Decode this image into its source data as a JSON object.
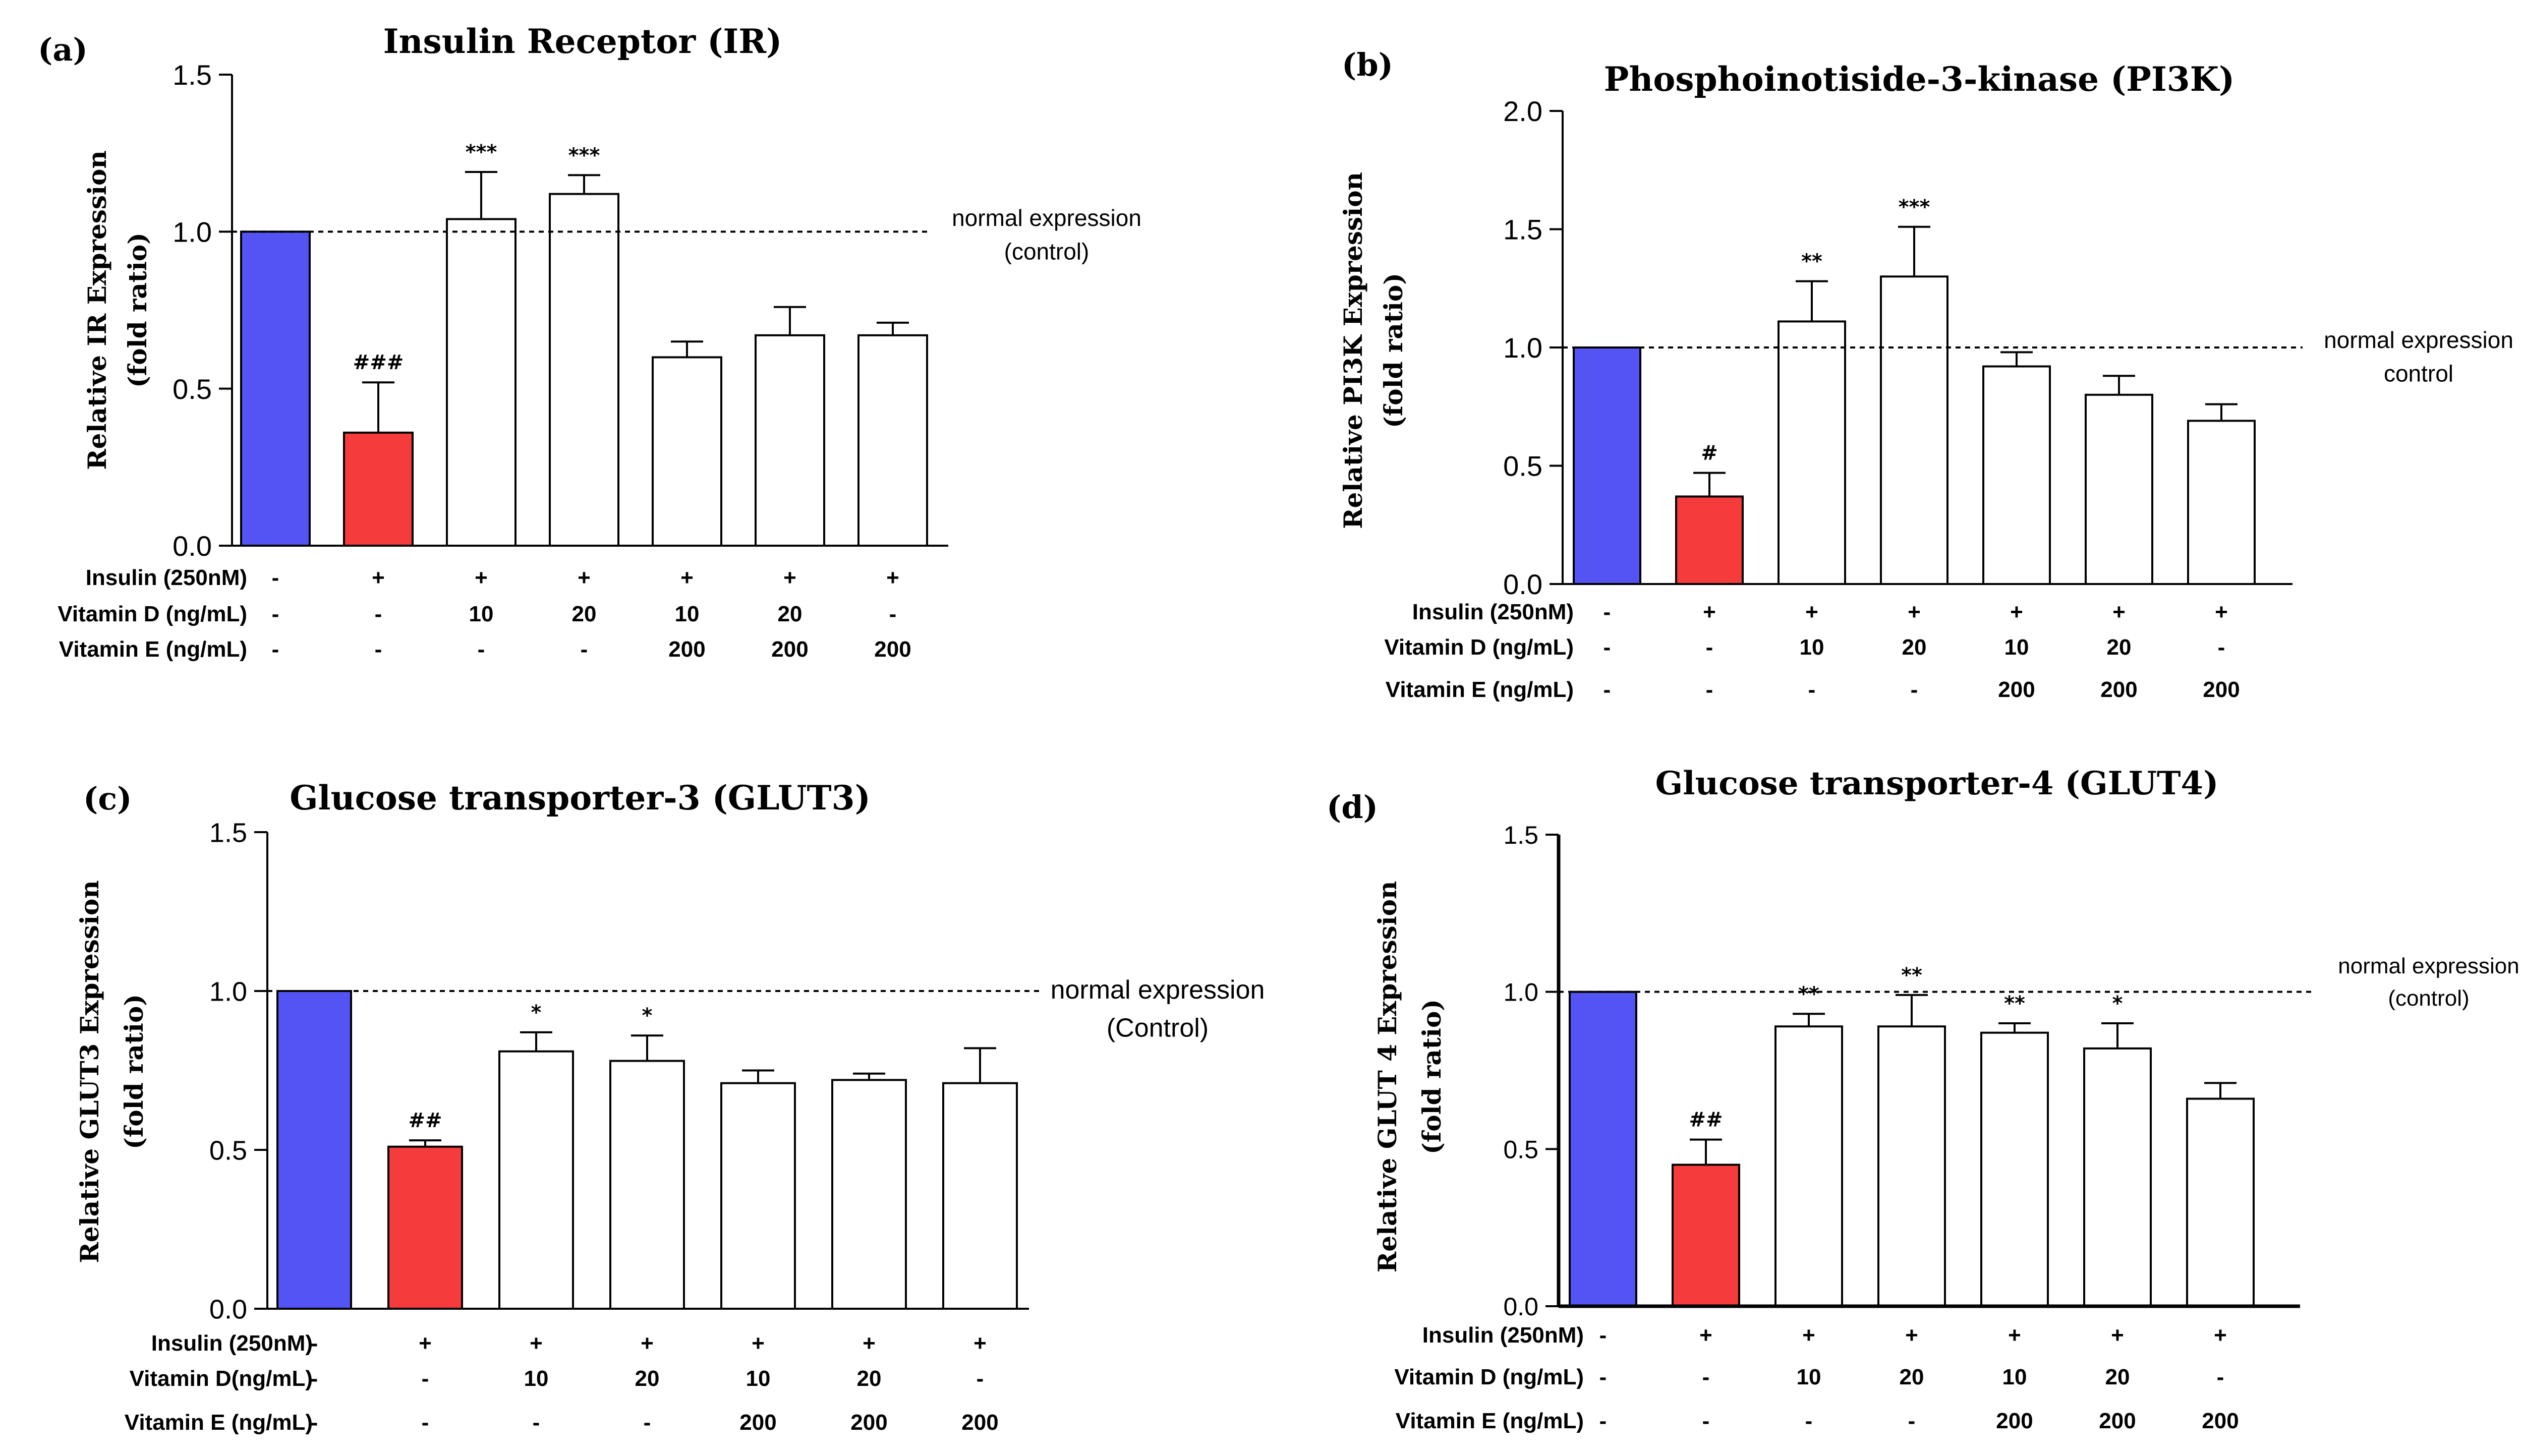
{
  "colors": {
    "control": "#5454f5",
    "insulin_only": "#f53b3b",
    "treatment": "#ffffff",
    "axis": "#000000"
  },
  "chart_data": [
    {
      "type": "bar",
      "panel": "(a)",
      "title": "Insulin Receptor (IR)",
      "ylabel": [
        "Relative IR Expression",
        "(fold ratio)"
      ],
      "ylim": [
        0,
        1.5
      ],
      "yticks": [
        "0.0",
        "0.5",
        "1.0",
        "1.5"
      ],
      "values": [
        1.0,
        0.36,
        1.04,
        1.12,
        0.6,
        0.67,
        0.67
      ],
      "errors": [
        0,
        0.16,
        0.15,
        0.06,
        0.05,
        0.09,
        0.04
      ],
      "significance": [
        "",
        "###",
        "***",
        "***",
        "",
        "",
        ""
      ],
      "reference": {
        "value": 1.0,
        "label": [
          "normal expression",
          "(control)"
        ]
      },
      "conditions": [
        {
          "label": "Insulin (250nM)",
          "values": [
            "-",
            "+",
            "+",
            "+",
            "+",
            "+",
            "+"
          ]
        },
        {
          "label": "Vitamin D (ng/mL)",
          "values": [
            "-",
            "-",
            "10",
            "20",
            "10",
            "20",
            "-"
          ]
        },
        {
          "label": "Vitamin E (ng/mL)",
          "values": [
            "-",
            "-",
            "-",
            "-",
            "200",
            "200",
            "200"
          ]
        }
      ]
    },
    {
      "type": "bar",
      "panel": "(b)",
      "title": "Phosphoinotiside-3-kinase (PI3K)",
      "ylabel": [
        "Relative PI3K Expression",
        "(fold ratio)"
      ],
      "ylim": [
        0,
        2.0
      ],
      "yticks": [
        "0.0",
        "0.5",
        "1.0",
        "1.5",
        "2.0"
      ],
      "values": [
        1.0,
        0.37,
        1.11,
        1.3,
        0.92,
        0.8,
        0.69
      ],
      "errors": [
        0,
        0.1,
        0.17,
        0.21,
        0.06,
        0.08,
        0.07
      ],
      "significance": [
        "",
        "#",
        "**",
        "***",
        "",
        "",
        ""
      ],
      "reference": {
        "value": 1.0,
        "label": [
          "normal expression",
          "control"
        ]
      },
      "conditions": [
        {
          "label": "Insulin (250nM)",
          "values": [
            "-",
            "+",
            "+",
            "+",
            "+",
            "+",
            "+"
          ]
        },
        {
          "label": "Vitamin D (ng/mL)",
          "values": [
            "-",
            "-",
            "10",
            "20",
            "10",
            "20",
            "-"
          ]
        },
        {
          "label": "Vitamin E (ng/mL)",
          "values": [
            "-",
            "-",
            "-",
            "-",
            "200",
            "200",
            "200"
          ]
        }
      ]
    },
    {
      "type": "bar",
      "panel": "(c)",
      "title": "Glucose transporter-3 (GLUT3)",
      "ylabel": [
        "Relative GLUT3 Expression",
        "(fold ratio)"
      ],
      "ylim": [
        0,
        1.5
      ],
      "yticks": [
        "0.0",
        "0.5",
        "1.0",
        "1.5"
      ],
      "values": [
        1.0,
        0.51,
        0.81,
        0.78,
        0.71,
        0.72,
        0.71
      ],
      "errors": [
        0,
        0.02,
        0.06,
        0.08,
        0.04,
        0.02,
        0.11
      ],
      "significance": [
        "",
        "##",
        "*",
        "*",
        "",
        "",
        ""
      ],
      "reference": {
        "value": 1.0,
        "label": [
          "normal expression",
          "(Control)"
        ]
      },
      "conditions": [
        {
          "label": "Insulin (250nM)",
          "values": [
            "-",
            "+",
            "+",
            "+",
            "+",
            "+",
            "+"
          ]
        },
        {
          "label": "Vitamin D(ng/mL)",
          "values": [
            "-",
            "-",
            "10",
            "20",
            "10",
            "20",
            "-"
          ]
        },
        {
          "label": "Vitamin E (ng/mL)",
          "values": [
            "-",
            "-",
            "-",
            "-",
            "200",
            "200",
            "200"
          ]
        }
      ]
    },
    {
      "type": "bar",
      "panel": "(d)",
      "title": "Glucose transporter-4 (GLUT4)",
      "ylabel": [
        "Relative GLUT 4 Expression",
        "(fold ratio)"
      ],
      "ylim": [
        0,
        1.5
      ],
      "yticks": [
        "0.0",
        "0.5",
        "1.0",
        "1.5"
      ],
      "values": [
        1.0,
        0.45,
        0.89,
        0.89,
        0.87,
        0.82,
        0.66
      ],
      "errors": [
        0,
        0.08,
        0.04,
        0.1,
        0.03,
        0.08,
        0.05
      ],
      "significance": [
        "",
        "##",
        "**",
        "**",
        "**",
        "*",
        ""
      ],
      "reference": {
        "value": 1.0,
        "label": [
          "normal expression",
          "(control)"
        ]
      },
      "conditions": [
        {
          "label": "Insulin (250nM)",
          "values": [
            "-",
            "+",
            "+",
            "+",
            "+",
            "+",
            "+"
          ]
        },
        {
          "label": "Vitamin D (ng/mL)",
          "values": [
            "-",
            "-",
            "10",
            "20",
            "10",
            "20",
            "-"
          ]
        },
        {
          "label": "Vitamin E (ng/mL)",
          "values": [
            "-",
            "-",
            "-",
            "-",
            "200",
            "200",
            "200"
          ]
        }
      ]
    }
  ]
}
